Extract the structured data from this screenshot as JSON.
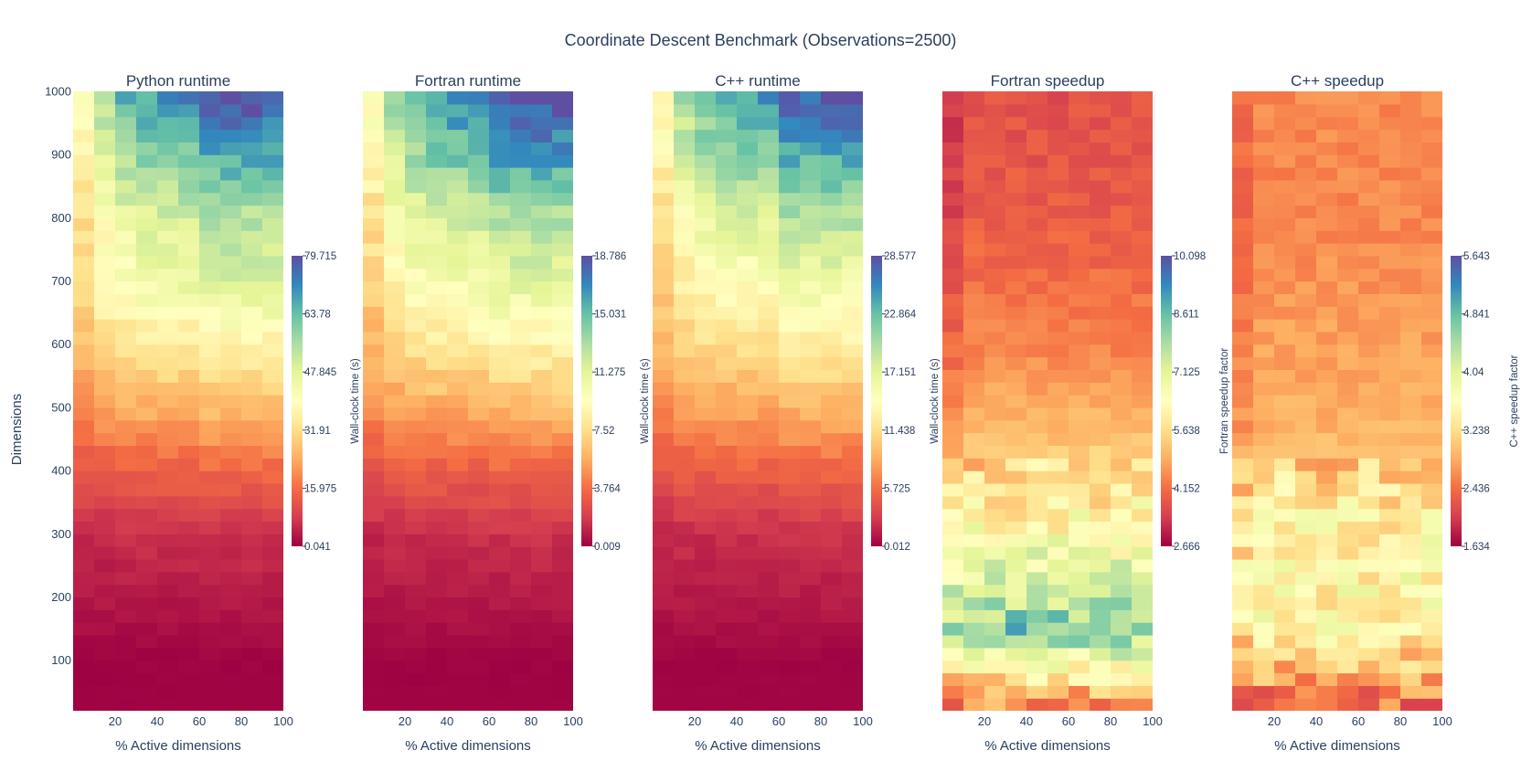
{
  "chart_data": {
    "type": "heatmap",
    "title": "Coordinate Descent Benchmark (Observations=2500)",
    "colorscale": "Spectral",
    "colors": [
      "#9e0142",
      "#d53e4f",
      "#f46d43",
      "#fdae61",
      "#fee08b",
      "#ffffbf",
      "#e6f598",
      "#abdda4",
      "#66c2a5",
      "#3288bd",
      "#5e4fa2"
    ],
    "shared_y": {
      "label": "Dimensions",
      "range": [
        20,
        1000
      ],
      "tick_labels": [
        "100",
        "200",
        "300",
        "400",
        "500",
        "600",
        "700",
        "800",
        "900",
        "1000"
      ]
    },
    "shared_x": {
      "label": "% Active dimensions",
      "range": [
        0,
        100
      ],
      "tick_labels": [
        "20",
        "40",
        "60",
        "80",
        "100"
      ]
    },
    "panels": [
      {
        "subtitle": "Python runtime",
        "colorbar_label": "Wall-clock time (s)",
        "zmin": 0.041,
        "zmax": 79.715,
        "colorbar_ticks": [
          "0.041",
          "15.975",
          "31.91",
          "47.845",
          "63.78",
          "79.715"
        ],
        "pattern": "runtime",
        "approx_dim_bands": [
          {
            "dim": 100,
            "value": 0.4
          },
          {
            "dim": 300,
            "value": 6
          },
          {
            "dim": 400,
            "value": 14
          },
          {
            "dim": 500,
            "value": 25
          },
          {
            "dim": 600,
            "value": 35
          },
          {
            "dim": 700,
            "value": 46
          },
          {
            "dim": 800,
            "value": 50
          },
          {
            "dim": 900,
            "value": 62
          },
          {
            "dim": 1000,
            "value": 74
          }
        ]
      },
      {
        "subtitle": "Fortran runtime",
        "colorbar_label": "Wall-clock time (s)",
        "zmin": 0.009,
        "zmax": 18.786,
        "colorbar_ticks": [
          "0.009",
          "3.764",
          "7.52",
          "11.275",
          "15.031",
          "18.786"
        ],
        "pattern": "runtime",
        "approx_dim_bands": [
          {
            "dim": 100,
            "value": 0.1
          },
          {
            "dim": 300,
            "value": 1.4
          },
          {
            "dim": 400,
            "value": 3.2
          },
          {
            "dim": 500,
            "value": 5.8
          },
          {
            "dim": 600,
            "value": 8.2
          },
          {
            "dim": 700,
            "value": 10.5
          },
          {
            "dim": 800,
            "value": 12
          },
          {
            "dim": 900,
            "value": 15
          },
          {
            "dim": 1000,
            "value": 17.5
          }
        ]
      },
      {
        "subtitle": "C++ runtime",
        "colorbar_label": "Wall-clock time (s)",
        "zmin": 0.012,
        "zmax": 28.577,
        "colorbar_ticks": [
          "0.012",
          "5.725",
          "11.438",
          "17.151",
          "22.864",
          "28.577"
        ],
        "pattern": "runtime",
        "approx_dim_bands": [
          {
            "dim": 100,
            "value": 0.2
          },
          {
            "dim": 300,
            "value": 2.2
          },
          {
            "dim": 400,
            "value": 5
          },
          {
            "dim": 500,
            "value": 8.5
          },
          {
            "dim": 600,
            "value": 12
          },
          {
            "dim": 700,
            "value": 15
          },
          {
            "dim": 800,
            "value": 18
          },
          {
            "dim": 900,
            "value": 22
          },
          {
            "dim": 1000,
            "value": 26
          }
        ]
      },
      {
        "subtitle": "Fortran speedup",
        "colorbar_label": "Fortran speedup factor",
        "zmin": 2.666,
        "zmax": 10.098,
        "colorbar_ticks": [
          "2.666",
          "4.152",
          "5.638",
          "7.125",
          "8.611",
          "10.098"
        ],
        "pattern": "speedup",
        "approx_dim_bands": [
          {
            "dim": 30,
            "value": 4.5
          },
          {
            "dim": 150,
            "value": 8.3
          },
          {
            "dim": 250,
            "value": 7.0
          },
          {
            "dim": 350,
            "value": 6.0
          },
          {
            "dim": 450,
            "value": 5.2
          },
          {
            "dim": 600,
            "value": 4.4
          },
          {
            "dim": 800,
            "value": 3.9
          },
          {
            "dim": 1000,
            "value": 3.7
          }
        ]
      },
      {
        "subtitle": "C++ speedup",
        "colorbar_label": "C++ speedup factor",
        "zmin": 1.634,
        "zmax": 5.643,
        "colorbar_ticks": [
          "1.634",
          "2.436",
          "3.238",
          "4.04",
          "4.841",
          "5.643"
        ],
        "pattern": "speedup",
        "approx_dim_bands": [
          {
            "dim": 30,
            "value": 2.4
          },
          {
            "dim": 150,
            "value": 3.5
          },
          {
            "dim": 250,
            "value": 3.6
          },
          {
            "dim": 350,
            "value": 3.4
          },
          {
            "dim": 450,
            "value": 2.9
          },
          {
            "dim": 600,
            "value": 2.75
          },
          {
            "dim": 800,
            "value": 2.6
          },
          {
            "dim": 1000,
            "value": 2.6
          }
        ]
      }
    ]
  }
}
